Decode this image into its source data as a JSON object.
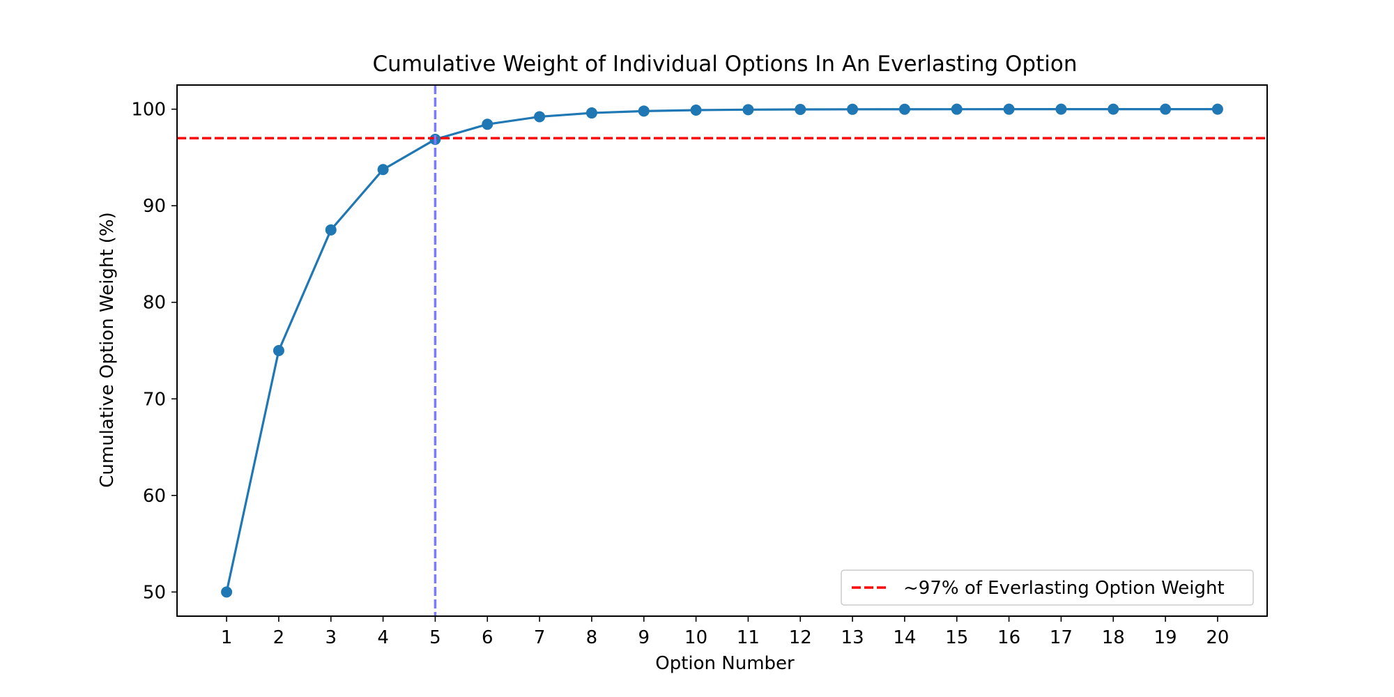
{
  "chart_data": {
    "type": "line",
    "title": "Cumulative Weight of Individual Options In An Everlasting Option",
    "xlabel": "Option Number",
    "ylabel": "Cumulative Option Weight (%)",
    "x": [
      1,
      2,
      3,
      4,
      5,
      6,
      7,
      8,
      9,
      10,
      11,
      12,
      13,
      14,
      15,
      16,
      17,
      18,
      19,
      20
    ],
    "xticks": [
      "1",
      "2",
      "3",
      "4",
      "5",
      "6",
      "7",
      "8",
      "9",
      "10",
      "11",
      "12",
      "13",
      "14",
      "15",
      "16",
      "17",
      "18",
      "19",
      "20"
    ],
    "xlim": [
      0.05,
      20.95
    ],
    "ylim": [
      47.5,
      102.5
    ],
    "yticks": [
      50,
      60,
      70,
      80,
      90,
      100
    ],
    "ytick_labels": [
      "50",
      "60",
      "70",
      "80",
      "90",
      "100"
    ],
    "series": [
      {
        "values": [
          50,
          75,
          87.5,
          93.75,
          96.875,
          98.4375,
          99.21875,
          99.609375,
          99.8046875,
          99.90234375,
          99.951171875,
          99.9755859375,
          99.98779296875,
          99.993896484375,
          99.9969482421875,
          99.99847412109375,
          99.99923706054688,
          99.99961853027344,
          99.99980926513672,
          99.99990463256836
        ],
        "color": "#1f77b4",
        "marker": "circle"
      }
    ],
    "reference_lines": [
      {
        "orientation": "horizontal",
        "value": 97,
        "color": "#ff0000",
        "style": "dashed"
      },
      {
        "orientation": "vertical",
        "value": 5,
        "color": "#7b7bff",
        "style": "dashed"
      }
    ],
    "legend": {
      "placement": "lower-right",
      "entries": [
        {
          "label": "~97% of Everlasting Option Weight",
          "color": "#ff0000",
          "style": "dashed"
        }
      ]
    },
    "grid": false
  }
}
